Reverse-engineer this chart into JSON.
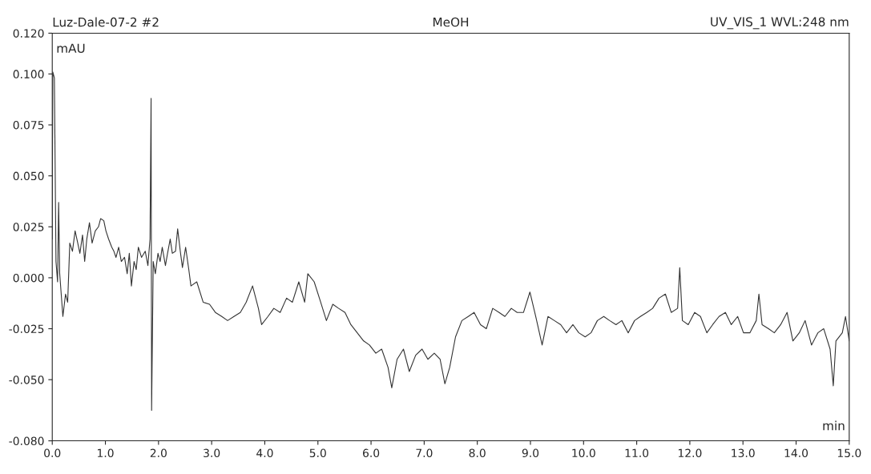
{
  "chart_data": {
    "type": "line",
    "title": "MeOH",
    "xlabel": "min",
    "ylabel": "mAU",
    "annotations": [
      "Luz-Dale-07-2 #2",
      "UV_VIS_1 WVL:248 nm"
    ],
    "xlim": [
      0,
      15
    ],
    "ylim": [
      -0.08,
      0.12
    ],
    "xticks": [
      {
        "value": 0,
        "label": "0.0"
      },
      {
        "value": 1,
        "label": "1.0"
      },
      {
        "value": 2,
        "label": "2.0"
      },
      {
        "value": 3,
        "label": "3.0"
      },
      {
        "value": 4,
        "label": "4.0"
      },
      {
        "value": 5,
        "label": "5.0"
      },
      {
        "value": 6,
        "label": "6.0"
      },
      {
        "value": 7,
        "label": "7.0"
      },
      {
        "value": 8,
        "label": "8.0"
      },
      {
        "value": 9,
        "label": "9.0"
      },
      {
        "value": 10,
        "label": "10.0"
      },
      {
        "value": 11,
        "label": "11.0"
      },
      {
        "value": 12,
        "label": "12.0"
      },
      {
        "value": 13,
        "label": "13.0"
      },
      {
        "value": 14,
        "label": "14.0"
      },
      {
        "value": 15,
        "label": "15.0"
      }
    ],
    "yticks": [
      {
        "value": -0.08,
        "label": "-0.080"
      },
      {
        "value": -0.05,
        "label": "-0.050"
      },
      {
        "value": -0.025,
        "label": "-0.025"
      },
      {
        "value": 0,
        "label": "0.000"
      },
      {
        "value": 0.025,
        "label": "0.025"
      },
      {
        "value": 0.05,
        "label": "0.050"
      },
      {
        "value": 0.075,
        "label": "0.075"
      },
      {
        "value": 0.1,
        "label": "0.100"
      },
      {
        "value": 0.12,
        "label": "0.120"
      }
    ],
    "grid": false,
    "legend": false,
    "marker": "none",
    "line_style": "solid",
    "series": [
      {
        "color": "#333333",
        "x": [
          0.0,
          0.01,
          0.04,
          0.07,
          0.1,
          0.12,
          0.14,
          0.2,
          0.25,
          0.29,
          0.33,
          0.38,
          0.43,
          0.48,
          0.52,
          0.57,
          0.61,
          0.65,
          0.7,
          0.75,
          0.81,
          0.87,
          0.91,
          0.97,
          1.01,
          1.06,
          1.12,
          1.16,
          1.2,
          1.25,
          1.3,
          1.36,
          1.41,
          1.45,
          1.49,
          1.54,
          1.58,
          1.62,
          1.68,
          1.75,
          1.8,
          1.84,
          1.86,
          1.87,
          1.9,
          1.94,
          1.99,
          2.03,
          2.07,
          2.13,
          2.17,
          2.22,
          2.26,
          2.32,
          2.36,
          2.41,
          2.45,
          2.51,
          2.57,
          2.61,
          2.72,
          2.84,
          2.96,
          3.07,
          3.19,
          3.3,
          3.42,
          3.54,
          3.65,
          3.77,
          3.88,
          3.94,
          4.06,
          4.17,
          4.29,
          4.41,
          4.52,
          4.64,
          4.75,
          4.81,
          4.93,
          5.04,
          5.16,
          5.28,
          5.39,
          5.51,
          5.62,
          5.74,
          5.86,
          5.97,
          6.09,
          6.2,
          6.32,
          6.39,
          6.49,
          6.61,
          6.72,
          6.84,
          6.96,
          7.07,
          7.19,
          7.3,
          7.39,
          7.48,
          7.59,
          7.71,
          7.83,
          7.94,
          8.06,
          8.17,
          8.29,
          8.41,
          8.52,
          8.64,
          8.75,
          8.87,
          8.99,
          9.1,
          9.22,
          9.33,
          9.45,
          9.57,
          9.68,
          9.8,
          9.91,
          10.03,
          10.14,
          10.26,
          10.38,
          10.49,
          10.61,
          10.72,
          10.84,
          10.96,
          11.07,
          11.19,
          11.3,
          11.42,
          11.54,
          11.65,
          11.77,
          11.81,
          11.86,
          11.97,
          12.09,
          12.2,
          12.32,
          12.43,
          12.55,
          12.67,
          12.78,
          12.9,
          13.01,
          13.13,
          13.25,
          13.3,
          13.36,
          13.48,
          13.59,
          13.71,
          13.83,
          13.94,
          14.06,
          14.17,
          14.29,
          14.41,
          14.52,
          14.64,
          14.7,
          14.75,
          14.87,
          14.93,
          15.0
        ],
        "values": [
          0.019,
          0.101,
          0.098,
          0.008,
          -0.002,
          0.037,
          0.002,
          -0.019,
          -0.008,
          -0.012,
          0.017,
          0.013,
          0.023,
          0.017,
          0.012,
          0.021,
          0.008,
          0.019,
          0.027,
          0.017,
          0.023,
          0.025,
          0.029,
          0.028,
          0.023,
          0.019,
          0.015,
          0.013,
          0.01,
          0.015,
          0.008,
          0.01,
          0.002,
          0.012,
          -0.004,
          0.008,
          0.004,
          0.015,
          0.01,
          0.013,
          0.006,
          0.019,
          0.088,
          -0.065,
          0.008,
          0.002,
          0.012,
          0.008,
          0.015,
          0.006,
          0.012,
          0.019,
          0.012,
          0.013,
          0.024,
          0.013,
          0.005,
          0.015,
          0.004,
          -0.004,
          -0.002,
          -0.012,
          -0.013,
          -0.017,
          -0.019,
          -0.021,
          -0.019,
          -0.017,
          -0.012,
          -0.004,
          -0.015,
          -0.023,
          -0.019,
          -0.015,
          -0.017,
          -0.01,
          -0.012,
          -0.002,
          -0.012,
          0.002,
          -0.002,
          -0.011,
          -0.021,
          -0.013,
          -0.015,
          -0.017,
          -0.023,
          -0.027,
          -0.031,
          -0.033,
          -0.037,
          -0.035,
          -0.044,
          -0.054,
          -0.04,
          -0.035,
          -0.046,
          -0.038,
          -0.035,
          -0.04,
          -0.037,
          -0.04,
          -0.052,
          -0.044,
          -0.029,
          -0.021,
          -0.019,
          -0.017,
          -0.023,
          -0.025,
          -0.015,
          -0.017,
          -0.019,
          -0.015,
          -0.017,
          -0.017,
          -0.007,
          -0.019,
          -0.033,
          -0.019,
          -0.021,
          -0.023,
          -0.027,
          -0.023,
          -0.027,
          -0.029,
          -0.027,
          -0.021,
          -0.019,
          -0.021,
          -0.023,
          -0.021,
          -0.027,
          -0.021,
          -0.019,
          -0.017,
          -0.015,
          -0.01,
          -0.008,
          -0.017,
          -0.015,
          0.005,
          -0.021,
          -0.023,
          -0.017,
          -0.019,
          -0.027,
          -0.023,
          -0.019,
          -0.017,
          -0.023,
          -0.019,
          -0.027,
          -0.027,
          -0.021,
          -0.008,
          -0.023,
          -0.025,
          -0.027,
          -0.023,
          -0.017,
          -0.031,
          -0.027,
          -0.021,
          -0.033,
          -0.027,
          -0.025,
          -0.035,
          -0.053,
          -0.031,
          -0.027,
          -0.019,
          -0.031
        ]
      }
    ]
  }
}
